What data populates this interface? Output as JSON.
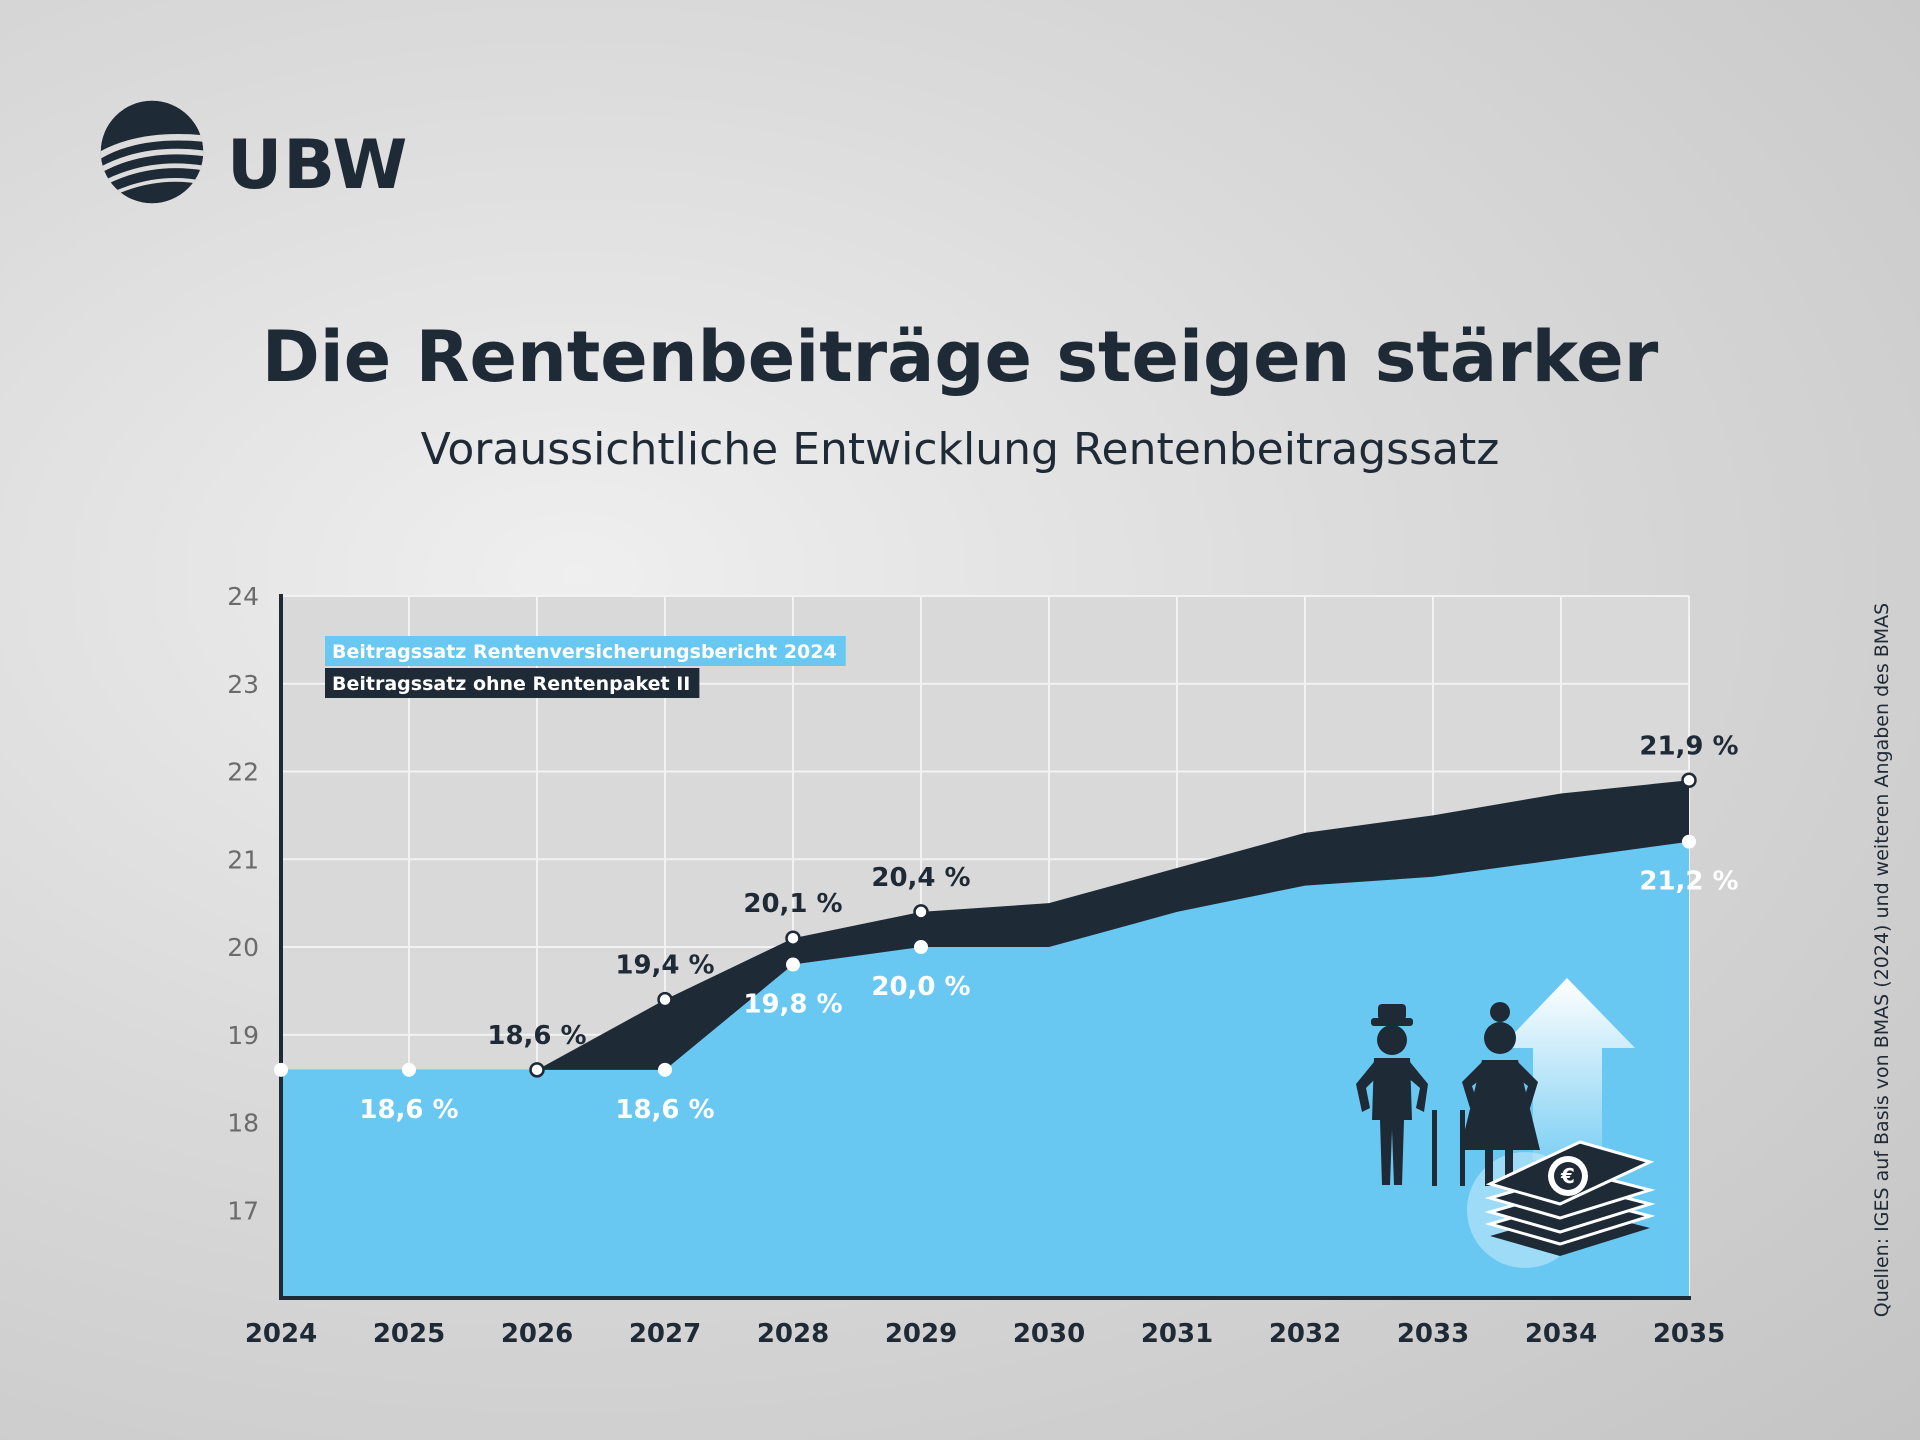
{
  "brand": {
    "name": "UBW",
    "logo_icon": "ubw-globe-logo"
  },
  "title": "Die Rentenbeiträge steigen stärker",
  "subtitle": "Voraussichtliche Entwicklung Rentenbeitragssatz",
  "source": "Quellen: IGES auf Basis von BMAS (2024) und weiteren Angaben des BMAS",
  "colors": {
    "light": "#69c8f2",
    "dark": "#1f2a37",
    "plot_bg": "#d9d9d9",
    "grid": "#f2f2f2"
  },
  "illustration": {
    "icon": "seniors-rising-pension-costs-icon",
    "currency_symbol": "€"
  },
  "chart_data": {
    "type": "area",
    "x": [
      2024,
      2025,
      2026,
      2027,
      2028,
      2029,
      2030,
      2031,
      2032,
      2033,
      2034,
      2035
    ],
    "ylim": [
      16,
      24
    ],
    "yticks": [
      17,
      18,
      19,
      20,
      21,
      22,
      23,
      24
    ],
    "grid": true,
    "legend_position": "top-left",
    "series": [
      {
        "name": "Beitragssatz Rentenversicherungsbericht 2024",
        "color": "#69c8f2",
        "values": [
          18.6,
          18.6,
          18.6,
          18.6,
          19.8,
          20.0,
          20.0,
          20.4,
          20.7,
          20.8,
          21.0,
          21.2
        ]
      },
      {
        "name": "Beitragssatz ohne Rentenpaket II",
        "color": "#1f2a37",
        "values": [
          18.6,
          18.6,
          18.6,
          19.4,
          20.1,
          20.4,
          20.5,
          20.9,
          21.3,
          21.5,
          21.75,
          21.9
        ]
      }
    ],
    "markers": [
      {
        "series": 0,
        "years": [
          2024,
          2025,
          2026,
          2027,
          2028,
          2029,
          2035
        ]
      },
      {
        "series": 1,
        "years": [
          2026,
          2027,
          2028,
          2029,
          2035
        ]
      }
    ],
    "annotations": [
      {
        "year": 2025,
        "value": 18.6,
        "text": "18,6 %",
        "series": 0,
        "pos": "below"
      },
      {
        "year": 2027,
        "value": 18.6,
        "text": "18,6 %",
        "series": 0,
        "pos": "below"
      },
      {
        "year": 2028,
        "value": 19.8,
        "text": "19,8 %",
        "series": 0,
        "pos": "below"
      },
      {
        "year": 2029,
        "value": 20.0,
        "text": "20,0 %",
        "series": 0,
        "pos": "below"
      },
      {
        "year": 2035,
        "value": 21.2,
        "text": "21,2 %",
        "series": 0,
        "pos": "below"
      },
      {
        "year": 2026,
        "value": 18.6,
        "text": "18,6 %",
        "series": 1,
        "pos": "above"
      },
      {
        "year": 2027,
        "value": 19.4,
        "text": "19,4 %",
        "series": 1,
        "pos": "above"
      },
      {
        "year": 2028,
        "value": 20.1,
        "text": "20,1 %",
        "series": 1,
        "pos": "above"
      },
      {
        "year": 2029,
        "value": 20.4,
        "text": "20,4 %",
        "series": 1,
        "pos": "above"
      },
      {
        "year": 2035,
        "value": 21.9,
        "text": "21,9 %",
        "series": 1,
        "pos": "above"
      }
    ]
  }
}
